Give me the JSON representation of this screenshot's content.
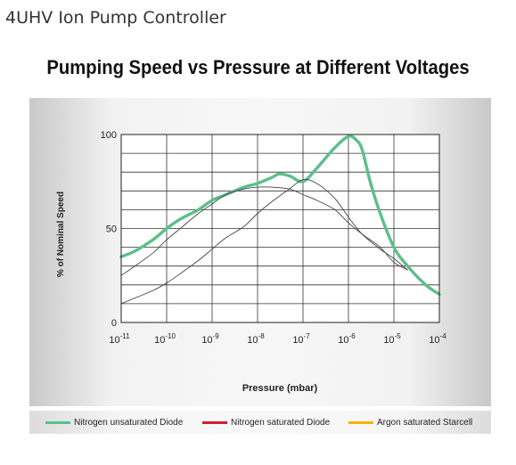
{
  "page": {
    "title": "4UHV Ion Pump Controller"
  },
  "chart_data": {
    "type": "line",
    "title": "Pumping Speed vs Pressure at Different Voltages",
    "xlabel": "Pressure (mbar)",
    "ylabel": "% of Nominal Speed",
    "x_scale": "log",
    "xlim": [
      1e-11,
      0.0001
    ],
    "ylim": [
      0,
      100
    ],
    "x_ticks": [
      {
        "base": "10",
        "exp": "-11"
      },
      {
        "base": "10",
        "exp": "-10"
      },
      {
        "base": "10",
        "exp": "-9"
      },
      {
        "base": "10",
        "exp": "-8"
      },
      {
        "base": "10",
        "exp": "-7"
      },
      {
        "base": "10",
        "exp": "-6"
      },
      {
        "base": "10",
        "exp": "-5"
      },
      {
        "base": "10",
        "exp": "-4"
      }
    ],
    "y_ticks": [
      "0",
      "50",
      "100"
    ],
    "grid": true,
    "legend_position": "bottom",
    "series": [
      {
        "name": "Nitrogen unsaturated Diode",
        "color": "#5cbf8a",
        "x": [
          1e-11,
          2e-11,
          5e-11,
          1e-10,
          2e-10,
          5e-10,
          1e-09,
          2e-09,
          5e-09,
          1e-08,
          2e-08,
          3e-08,
          5e-08,
          1e-07,
          2e-07,
          5e-07,
          1e-06,
          1.5e-06,
          2e-06,
          3e-06,
          5e-06,
          1e-05,
          2e-05,
          5e-05,
          0.0001
        ],
        "y": [
          35,
          38,
          44,
          50,
          55,
          60,
          65,
          68,
          72,
          74,
          77,
          79,
          78,
          75,
          82,
          93,
          99,
          97,
          92,
          75,
          58,
          40,
          30,
          20,
          15
        ]
      },
      {
        "name": "Nitrogen saturated Diode",
        "color": "#d0202e",
        "x": [
          1e-11,
          2e-11,
          5e-11,
          1e-10,
          2e-10,
          5e-10,
          1e-09,
          2e-09,
          5e-09,
          1e-08,
          2e-08,
          5e-08,
          1e-07,
          2e-07,
          5e-07,
          1e-06,
          2e-06,
          5e-06,
          1e-05,
          2e-05
        ],
        "y": [
          25,
          30,
          37,
          44,
          50,
          58,
          63,
          68,
          71,
          72,
          72,
          71,
          68,
          65,
          60,
          53,
          47,
          40,
          32,
          28
        ]
      },
      {
        "name": "Argon saturated Starcell",
        "color": "#f4b400",
        "x": [
          1e-11,
          2e-11,
          5e-11,
          1e-10,
          2e-10,
          5e-10,
          1e-09,
          2e-09,
          5e-09,
          1e-08,
          2e-08,
          5e-08,
          1e-07,
          2e-07,
          5e-07,
          1e-06,
          2e-06,
          5e-06,
          1e-05,
          2e-05
        ],
        "y": [
          10,
          13,
          17,
          21,
          26,
          33,
          39,
          45,
          51,
          58,
          64,
          71,
          76,
          74,
          66,
          56,
          47,
          39,
          34,
          28
        ]
      }
    ]
  }
}
